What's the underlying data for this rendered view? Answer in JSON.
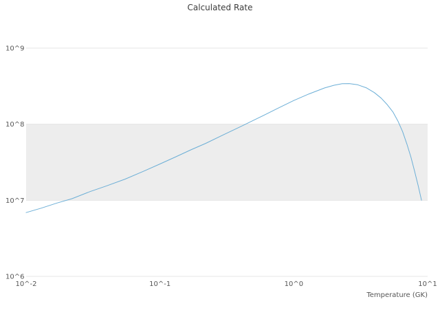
{
  "colors": {
    "line": "#6baed6",
    "band": "#ededed",
    "grid": "#e4e4e4",
    "text": "#555555"
  },
  "chart_data": {
    "type": "line",
    "title": "Calculated Rate",
    "xlabel": "Temperature (GK)",
    "ylabel": "",
    "x_scale": "log",
    "y_scale": "log",
    "xlim": [
      0.01,
      10
    ],
    "ylim": [
      1000000.0,
      1000000000.0
    ],
    "x_tick_values": [
      0.01,
      0.1,
      1,
      10
    ],
    "x_tick_labels": [
      "10^-2",
      "10^-1",
      "10^0",
      "10^1"
    ],
    "y_tick_values": [
      1000000.0,
      10000000.0,
      100000000.0,
      1000000000.0
    ],
    "y_tick_labels": [
      "10^6",
      "10^7",
      "10^8",
      "10^9"
    ],
    "shaded_band_y": [
      10000000.0,
      100000000.0
    ],
    "grid": "horizontal-only",
    "legend": "none",
    "series": [
      {
        "name": "Calculated Rate",
        "x": [
          0.01,
          0.013,
          0.017,
          0.022,
          0.03,
          0.04,
          0.055,
          0.075,
          0.1,
          0.13,
          0.17,
          0.22,
          0.3,
          0.4,
          0.55,
          0.75,
          1.0,
          1.3,
          1.7,
          2.0,
          2.3,
          2.6,
          3.0,
          3.5,
          4.0,
          4.5,
          5.0,
          5.5,
          6.0,
          6.5,
          7.0,
          7.5,
          8.0,
          8.5,
          9.0
        ],
        "y": [
          6900000.0,
          7900000.0,
          9200000.0,
          10500000.0,
          13000000.0,
          15500000.0,
          19000000.0,
          24000000.0,
          30000000.0,
          37000000.0,
          46000000.0,
          56000000.0,
          73000000.0,
          93000000.0,
          122000000.0,
          160000000.0,
          205000000.0,
          250000000.0,
          300000000.0,
          325000000.0,
          340000000.0,
          342000000.0,
          330000000.0,
          300000000.0,
          260000000.0,
          220000000.0,
          180000000.0,
          145000000.0,
          110000000.0,
          80000000.0,
          55000000.0,
          37000000.0,
          24000000.0,
          15500000.0,
          10000000.0
        ]
      }
    ]
  }
}
